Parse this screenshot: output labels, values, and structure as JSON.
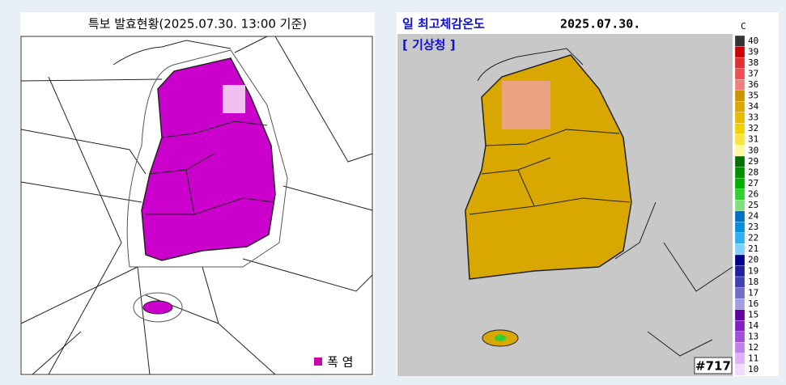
{
  "left_panel": {
    "title": "특보 발효현황(2025.07.30. 13:00 기준)",
    "legend": "폭 염"
  },
  "right_panel": {
    "title": "일 최고체감온도",
    "date": "2025.07.30.",
    "source": "[ 기상청 ]",
    "unit": "C",
    "code": "#717",
    "scale": {
      "labels": [
        40,
        39,
        38,
        37,
        36,
        35,
        34,
        33,
        32,
        31,
        30,
        29,
        28,
        27,
        26,
        25,
        24,
        23,
        22,
        21,
        20,
        19,
        18,
        17,
        16,
        15,
        14,
        13,
        12,
        11,
        10
      ],
      "colors": [
        "#333333",
        "#cc0000",
        "#e03030",
        "#ee5050",
        "#f08080",
        "#c89600",
        "#d8a800",
        "#e6bc00",
        "#f0d000",
        "#f8e640",
        "#fff8a0",
        "#007000",
        "#009000",
        "#00b000",
        "#30d030",
        "#80e080",
        "#0070c0",
        "#0090e0",
        "#30b0f0",
        "#80d0f8",
        "#000090",
        "#2020a0",
        "#4040b0",
        "#7070c8",
        "#a0a0e0",
        "#6000a0",
        "#8020c0",
        "#a050d8",
        "#c080e8",
        "#e0b0f8",
        "#f0d8ff"
      ]
    }
  }
}
